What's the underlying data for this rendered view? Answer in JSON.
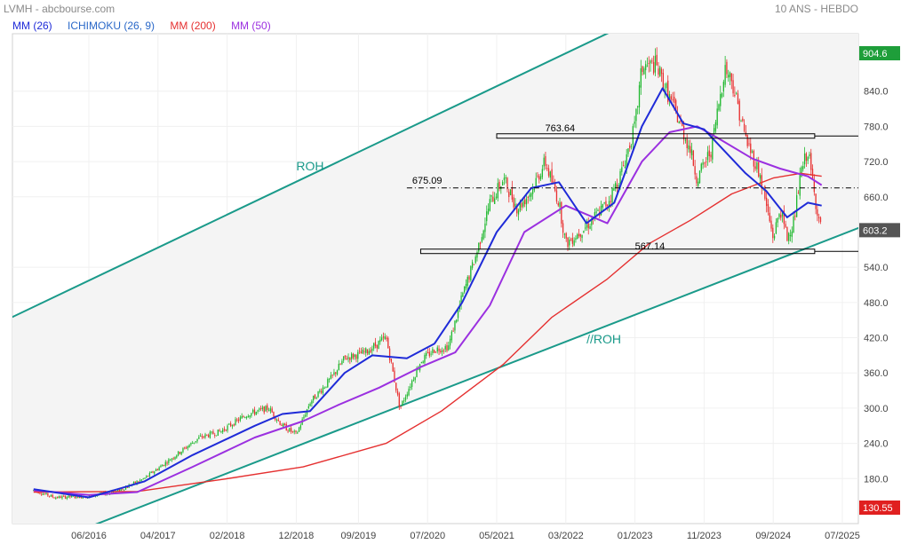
{
  "header": {
    "title_left": "LVMH - abcbourse.com",
    "title_right": "10 ANS - HEBDO"
  },
  "legend": [
    {
      "label": "MM (26)",
      "color": "#1f2bd8"
    },
    {
      "label": "ICHIMOKU (26, 9)",
      "color": "#2a68c8"
    },
    {
      "label": "MM (200)",
      "color": "#e53030"
    },
    {
      "label": "MM (50)",
      "color": "#9b30e0"
    }
  ],
  "chart_data": {
    "type": "line",
    "ylim": [
      130.55,
      904.6
    ],
    "price_axis_ticks": [
      "840.0",
      "780.0",
      "720.0",
      "660.0",
      "540.0",
      "480.0",
      "420.0",
      "360.0",
      "300.0",
      "240.0",
      "180.0"
    ],
    "price_badges": [
      {
        "label": "904.6",
        "value": 904.6,
        "color": "#1e9e3a"
      },
      {
        "label": "603.2",
        "value": 603.2,
        "color": "#555555"
      },
      {
        "label": "130.55",
        "value": 130.55,
        "color": "#e02020"
      }
    ],
    "x_tick_labels": [
      "06/2016",
      "04/2017",
      "02/2018",
      "12/2018",
      "09/2019",
      "07/2020",
      "05/2021",
      "03/2022",
      "01/2023",
      "11/2023",
      "09/2024",
      "07/2025"
    ],
    "x_tick_dates": [
      "2016-06",
      "2017-04",
      "2018-02",
      "2018-12",
      "2019-09",
      "2020-07",
      "2021-05",
      "2022-03",
      "2023-01",
      "2023-11",
      "2024-09",
      "2025-07"
    ],
    "colors": {
      "up_candle": "#1fb82e",
      "down_candle": "#e83030",
      "channel": "#1a9a8a",
      "level": "#000000",
      "grid": "#f0f0f0"
    },
    "grid": true,
    "channel": {
      "labels": [
        {
          "text": "ROH",
          "at": [
            "2018-12",
            705
          ]
        },
        {
          "text": "//ROH",
          "at": [
            "2022-06",
            410
          ]
        }
      ],
      "upper": [
        [
          "2015-06",
          450
        ],
        [
          "2023-08",
          1000
        ]
      ],
      "lower": [
        [
          "2016-12",
          125
        ],
        [
          "2025-10",
          610
        ]
      ]
    },
    "levels": [
      {
        "label": "763.64",
        "value": 763.64,
        "style": "box",
        "from": "2021-05",
        "to": "2025-03"
      },
      {
        "label": "675.09",
        "value": 675.09,
        "style": "dashdot",
        "from": "2020-04",
        "to": "2025-10"
      },
      {
        "label": "567.14",
        "value": 567.14,
        "style": "box",
        "from": "2020-06",
        "to": "2025-03"
      }
    ],
    "series": [
      {
        "name": "MM (200)",
        "color": "#e53030",
        "x": [
          "2015-10",
          "2017-01",
          "2018-01",
          "2019-01",
          "2020-01",
          "2020-09",
          "2021-06",
          "2022-01",
          "2022-09",
          "2023-03",
          "2023-09",
          "2024-03",
          "2024-09",
          "2025-01",
          "2025-04"
        ],
        "y": [
          157,
          158,
          178,
          200,
          240,
          295,
          375,
          455,
          520,
          580,
          620,
          665,
          692,
          700,
          695
        ]
      },
      {
        "name": "MM (50)",
        "color": "#9b30e0",
        "x": [
          "2015-10",
          "2016-06",
          "2017-01",
          "2017-09",
          "2018-06",
          "2019-01",
          "2019-06",
          "2019-12",
          "2020-06",
          "2020-11",
          "2021-04",
          "2021-09",
          "2022-03",
          "2022-09",
          "2023-02",
          "2023-06",
          "2023-10",
          "2024-01",
          "2024-06",
          "2024-10",
          "2025-02",
          "2025-04"
        ],
        "y": [
          160,
          152,
          157,
          200,
          250,
          278,
          305,
          335,
          370,
          395,
          475,
          600,
          645,
          615,
          720,
          770,
          780,
          760,
          725,
          708,
          695,
          680
        ]
      },
      {
        "name": "MM (26)",
        "color": "#1f2bd8",
        "x": [
          "2015-10",
          "2016-06",
          "2017-02",
          "2017-09",
          "2018-06",
          "2018-10",
          "2019-02",
          "2019-07",
          "2019-11",
          "2020-04",
          "2020-08",
          "2020-12",
          "2021-05",
          "2021-10",
          "2022-02",
          "2022-06",
          "2022-10",
          "2023-02",
          "2023-05",
          "2023-08",
          "2023-11",
          "2024-01",
          "2024-05",
          "2024-08",
          "2024-11",
          "2025-02",
          "2025-04"
        ],
        "y": [
          162,
          148,
          175,
          220,
          270,
          290,
          295,
          360,
          390,
          385,
          410,
          480,
          600,
          675,
          685,
          615,
          650,
          780,
          845,
          785,
          775,
          750,
          700,
          670,
          625,
          650,
          645
        ]
      }
    ],
    "price_path": {
      "name": "LVMH",
      "x": [
        "2015-10",
        "2016-01",
        "2016-06",
        "2016-10",
        "2017-02",
        "2017-06",
        "2017-10",
        "2018-01",
        "2018-05",
        "2018-08",
        "2018-10",
        "2018-12",
        "2019-02",
        "2019-05",
        "2019-07",
        "2019-10",
        "2020-01",
        "2020-03",
        "2020-06",
        "2020-08",
        "2020-10",
        "2020-12",
        "2021-02",
        "2021-04",
        "2021-06",
        "2021-08",
        "2021-10",
        "2021-12",
        "2022-02",
        "2022-03",
        "2022-06",
        "2022-09",
        "2022-11",
        "2023-01",
        "2023-02",
        "2023-04",
        "2023-07",
        "2023-09",
        "2023-10",
        "2023-12",
        "2024-02",
        "2024-03",
        "2024-05",
        "2024-07",
        "2024-09",
        "2024-10",
        "2024-11",
        "2024-12",
        "2025-01",
        "2025-02",
        "2025-03",
        "2025-04"
      ],
      "y": [
        160,
        148,
        150,
        158,
        180,
        215,
        250,
        260,
        290,
        300,
        270,
        255,
        310,
        350,
        385,
        395,
        420,
        300,
        380,
        400,
        405,
        490,
        560,
        650,
        690,
        640,
        670,
        720,
        650,
        580,
        610,
        650,
        700,
        780,
        880,
        885,
        800,
        740,
        690,
        740,
        880,
        860,
        760,
        700,
        590,
        640,
        590,
        620,
        700,
        740,
        660,
        600
      ]
    }
  }
}
